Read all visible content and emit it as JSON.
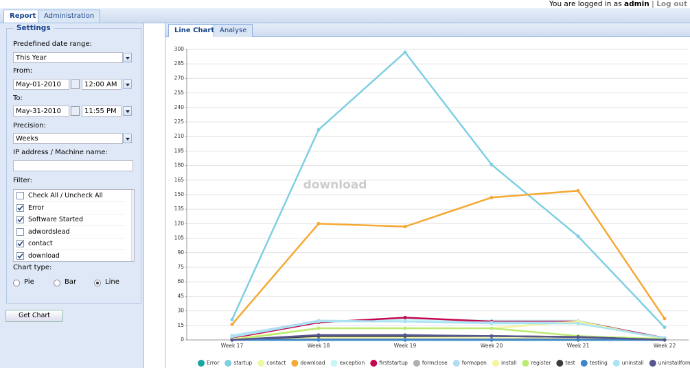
{
  "header": {
    "tabs": [
      "Report",
      "Administration"
    ],
    "login_prefix": "You are logged in as",
    "user": "admin",
    "separator": "|",
    "logout": "Log out"
  },
  "settings": {
    "title": "Settings",
    "date_range_label": "Predefined date range:",
    "date_range": "This Year",
    "from_label": "From:",
    "from_date": "May-01-2010",
    "from_time": "12:00 AM",
    "to_label": "To:",
    "to_date": "May-31-2010",
    "to_time": "11:55 PM",
    "precision_label": "Precision:",
    "precision": "Weeks",
    "ip_label": "IP address / Machine name:",
    "filter_label": "Filter:",
    "filters": [
      {
        "label": "Check All / Uncheck All",
        "checked": false
      },
      {
        "label": "Error",
        "checked": true
      },
      {
        "label": "Software Started",
        "checked": true
      },
      {
        "label": "adwordslead",
        "checked": false
      },
      {
        "label": "contact",
        "checked": true
      },
      {
        "label": "download",
        "checked": true
      }
    ],
    "chart_type_label": "Chart type:",
    "chart_types": [
      "Pie",
      "Bar",
      "Line"
    ],
    "selected_chart_type": 2,
    "button": "Get Chart"
  },
  "chart_tabs": [
    "Line Chart",
    "Analyse"
  ],
  "watermark": "download",
  "chart_data": {
    "type": "line",
    "categories": [
      "Week 17",
      "Week 18",
      "Week 19",
      "Week 20",
      "Week 21",
      "Week 22"
    ],
    "ylim": [
      0,
      300
    ],
    "yticks": [
      0,
      15,
      30,
      45,
      60,
      75,
      90,
      105,
      120,
      135,
      150,
      165,
      180,
      195,
      210,
      225,
      240,
      255,
      270,
      285,
      300
    ],
    "grid": true,
    "series": [
      {
        "name": "Error",
        "color": "#1aa6a0",
        "values": [
          0,
          0,
          0,
          0,
          0,
          0
        ]
      },
      {
        "name": "startup",
        "color": "#7ecfe3",
        "values": [
          21,
          217,
          297,
          181,
          107,
          13
        ]
      },
      {
        "name": "contact",
        "color": "#eef7a6",
        "values": [
          1,
          3,
          3,
          3,
          2,
          0
        ]
      },
      {
        "name": "download",
        "color": "#f5a833",
        "values": [
          16,
          120,
          117,
          147,
          154,
          22
        ]
      },
      {
        "name": "exception",
        "color": "#c8f6f6",
        "values": [
          5,
          19,
          21,
          20,
          20,
          2
        ]
      },
      {
        "name": "firststartup",
        "color": "#c4064f",
        "values": [
          2,
          18,
          23,
          19,
          19,
          2
        ]
      },
      {
        "name": "formclose",
        "color": "#b0b0b0",
        "values": [
          0,
          1,
          1,
          1,
          1,
          0
        ]
      },
      {
        "name": "formopen",
        "color": "#b3dcf3",
        "values": [
          4,
          20,
          19,
          18,
          18,
          1
        ]
      },
      {
        "name": "install",
        "color": "#f7f59c",
        "values": [
          1,
          12,
          12,
          12,
          19,
          1
        ]
      },
      {
        "name": "register",
        "color": "#bbeb72",
        "values": [
          0,
          12,
          12,
          12,
          4,
          1
        ]
      },
      {
        "name": "test",
        "color": "#3c3c3c",
        "values": [
          0,
          4,
          4,
          4,
          3,
          0
        ]
      },
      {
        "name": "testing",
        "color": "#3d86c8",
        "values": [
          0,
          0,
          0,
          0,
          0,
          0
        ]
      },
      {
        "name": "uninstall",
        "color": "#a9e4f1",
        "values": [
          3,
          19,
          19,
          17,
          17,
          2
        ]
      },
      {
        "name": "uninstallforment",
        "color": "#565690",
        "values": [
          0,
          5,
          5,
          4,
          3,
          0
        ]
      }
    ]
  }
}
